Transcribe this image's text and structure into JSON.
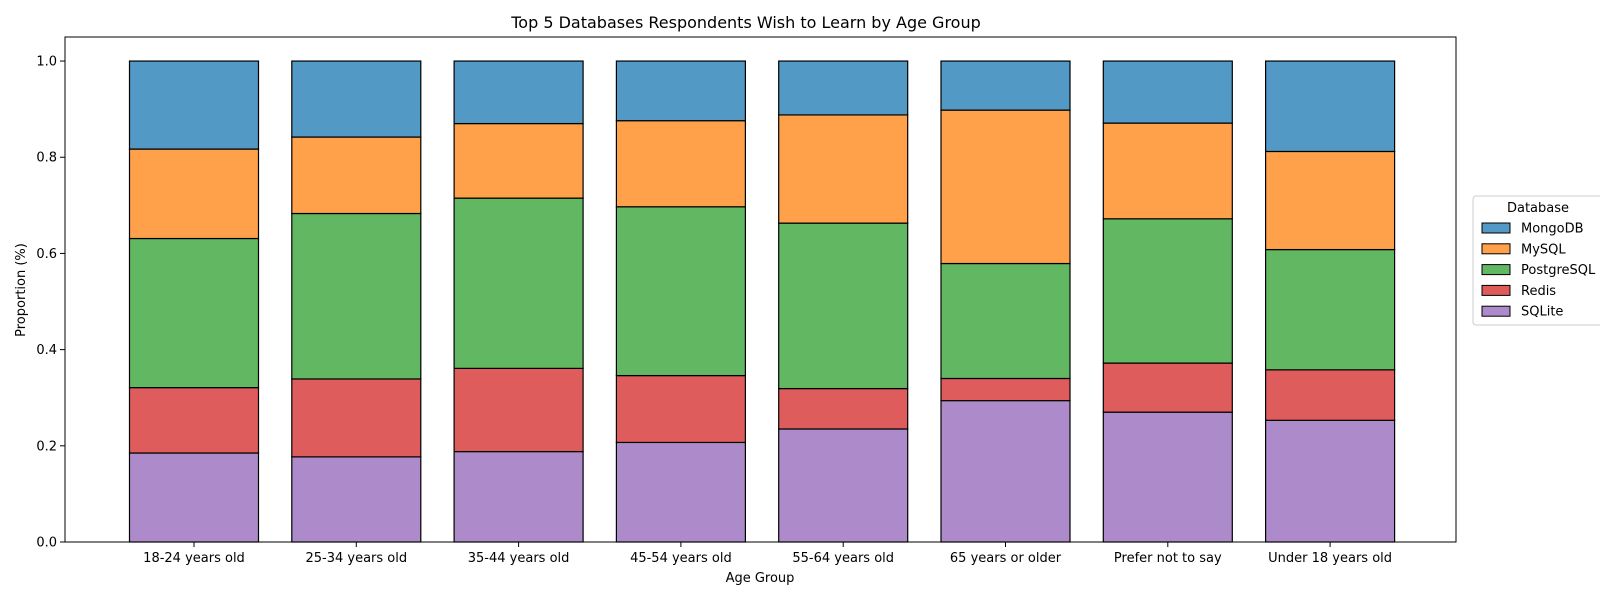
{
  "chart_data": {
    "type": "bar",
    "stacked": true,
    "title": "Top 5 Databases Respondents Wish to Learn by Age Group",
    "xlabel": "Age Group",
    "ylabel": "Proportion (%)",
    "ylim": [
      0,
      1.05
    ],
    "yticks": [
      "0.0",
      "0.2",
      "0.4",
      "0.6",
      "0.8",
      "1.0"
    ],
    "grid": false,
    "legend_title": "Database",
    "legend_position": "center right, outside plot",
    "categories": [
      "18-24 years old",
      "25-34 years old",
      "35-44 years old",
      "45-54 years old",
      "55-64 years old",
      "65 years or older",
      "Prefer not to say",
      "Under 18 years old"
    ],
    "series": [
      {
        "name": "SQLite",
        "color": "#ad8bca",
        "values": [
          0.185,
          0.177,
          0.188,
          0.207,
          0.235,
          0.294,
          0.27,
          0.253
        ]
      },
      {
        "name": "Redis",
        "color": "#df5c5c",
        "values": [
          0.136,
          0.162,
          0.173,
          0.139,
          0.084,
          0.046,
          0.102,
          0.105
        ]
      },
      {
        "name": "PostgreSQL",
        "color": "#62b862",
        "values": [
          0.31,
          0.344,
          0.354,
          0.351,
          0.344,
          0.239,
          0.3,
          0.25
        ]
      },
      {
        "name": "MySQL",
        "color": "#ffa04a",
        "values": [
          0.186,
          0.159,
          0.155,
          0.179,
          0.225,
          0.319,
          0.199,
          0.204
        ]
      },
      {
        "name": "MongoDB",
        "color": "#5299c6",
        "values": [
          0.183,
          0.158,
          0.13,
          0.124,
          0.112,
          0.102,
          0.129,
          0.188
        ]
      }
    ],
    "legend_order": [
      "MongoDB",
      "MySQL",
      "PostgreSQL",
      "Redis",
      "SQLite"
    ]
  }
}
